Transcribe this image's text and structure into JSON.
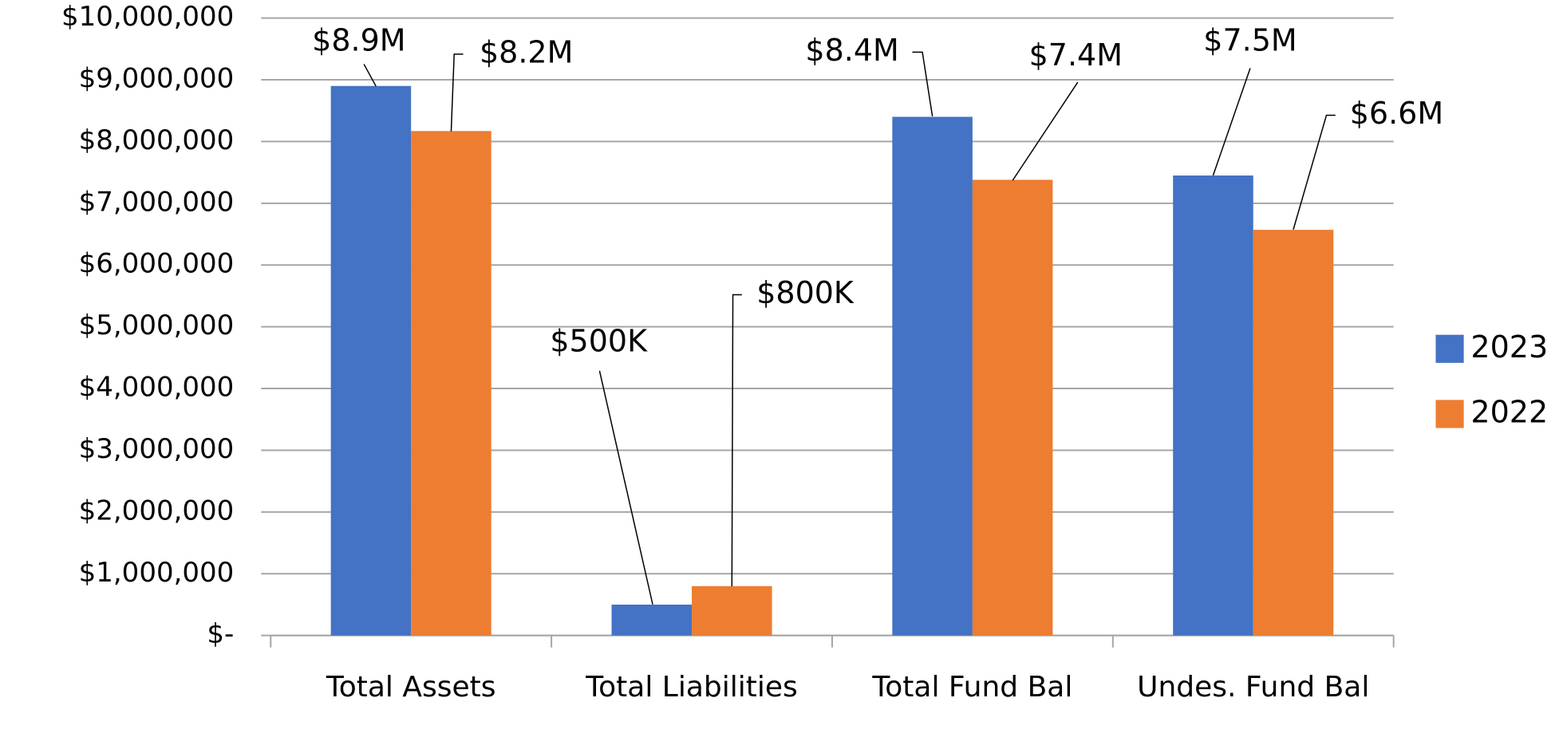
{
  "chart_data": {
    "type": "bar",
    "categories": [
      "Total Assets",
      "Total Liabilities",
      "Total Fund Bal",
      "Undes. Fund Bal"
    ],
    "series": [
      {
        "name": "2023",
        "color": "#4472c4",
        "values": [
          8900000,
          500000,
          8400000,
          7450000
        ],
        "value_labels": [
          "$8.9M",
          "$500K",
          "$8.4M",
          "$7.5M"
        ]
      },
      {
        "name": "2022",
        "color": "#ed7d31",
        "values": [
          8170000,
          800000,
          7380000,
          6570000
        ],
        "value_labels": [
          "$8.2M",
          "$800K",
          "$7.4M",
          "$6.6M"
        ]
      }
    ],
    "ylim": [
      0,
      10000000
    ],
    "yticks": [
      {
        "value": 0,
        "label": "$-"
      },
      {
        "value": 1000000,
        "label": "$1,000,000"
      },
      {
        "value": 2000000,
        "label": "$2,000,000"
      },
      {
        "value": 3000000,
        "label": "$3,000,000"
      },
      {
        "value": 4000000,
        "label": "$4,000,000"
      },
      {
        "value": 5000000,
        "label": "$5,000,000"
      },
      {
        "value": 6000000,
        "label": "$6,000,000"
      },
      {
        "value": 7000000,
        "label": "$7,000,000"
      },
      {
        "value": 8000000,
        "label": "$8,000,000"
      },
      {
        "value": 9000000,
        "label": "$9,000,000"
      },
      {
        "value": 10000000,
        "label": "$10,000,000"
      }
    ],
    "grid": true,
    "legend": "right"
  }
}
